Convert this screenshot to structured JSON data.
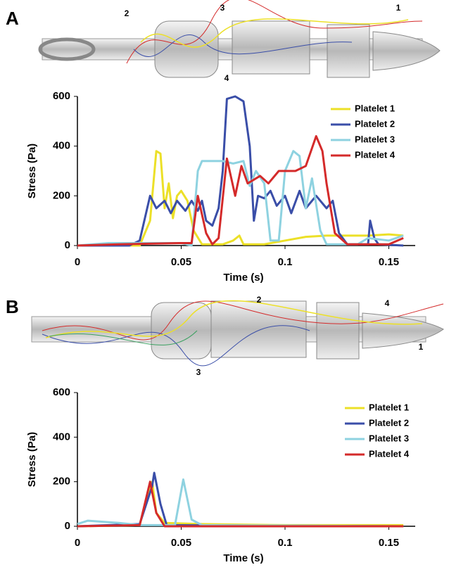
{
  "chart_data": [
    {
      "panel": "A",
      "type": "line",
      "image_labels": [
        "1",
        "2",
        "3",
        "4"
      ],
      "xlabel": "Time (s)",
      "ylabel": "Stress (Pa)",
      "xlim": [
        0,
        0.16
      ],
      "ylim": [
        0,
        600
      ],
      "xticks": [
        0,
        0.05,
        0.1,
        0.15
      ],
      "yticks": [
        0,
        200,
        400,
        600
      ],
      "legend": "upper right",
      "series": [
        {
          "name": "Platelet 1",
          "color": "#ece028",
          "x": [
            0,
            0.03,
            0.035,
            0.038,
            0.04,
            0.042,
            0.044,
            0.046,
            0.048,
            0.05,
            0.053,
            0.056,
            0.06,
            0.07,
            0.075,
            0.078,
            0.08,
            0.09,
            0.1,
            0.11,
            0.12,
            0.13,
            0.14,
            0.15,
            0.157
          ],
          "values": [
            0,
            0,
            100,
            380,
            370,
            150,
            250,
            110,
            200,
            220,
            180,
            60,
            5,
            5,
            20,
            40,
            5,
            5,
            20,
            35,
            40,
            40,
            40,
            45,
            40
          ]
        },
        {
          "name": "Platelet 2",
          "color": "#3a4ea8",
          "x": [
            0,
            0.025,
            0.03,
            0.035,
            0.038,
            0.042,
            0.045,
            0.048,
            0.052,
            0.055,
            0.058,
            0.06,
            0.062,
            0.065,
            0.068,
            0.07,
            0.072,
            0.076,
            0.08,
            0.083,
            0.085,
            0.087,
            0.09,
            0.093,
            0.096,
            0.1,
            0.103,
            0.107,
            0.11,
            0.115,
            0.12,
            0.123,
            0.126,
            0.13,
            0.14,
            0.141,
            0.143,
            0.145,
            0.157
          ],
          "values": [
            0,
            0,
            20,
            200,
            150,
            180,
            130,
            180,
            140,
            180,
            140,
            180,
            100,
            80,
            150,
            300,
            590,
            600,
            580,
            400,
            100,
            200,
            190,
            220,
            160,
            200,
            130,
            220,
            150,
            200,
            150,
            180,
            50,
            5,
            5,
            100,
            30,
            5,
            0
          ]
        },
        {
          "name": "Platelet 3",
          "color": "#8ed2e0",
          "x": [
            0,
            0.015,
            0.05,
            0.055,
            0.058,
            0.06,
            0.07,
            0.075,
            0.08,
            0.083,
            0.086,
            0.09,
            0.093,
            0.097,
            0.1,
            0.104,
            0.107,
            0.11,
            0.113,
            0.117,
            0.12,
            0.135,
            0.14,
            0.15,
            0.157
          ],
          "values": [
            0,
            10,
            10,
            0,
            300,
            340,
            340,
            330,
            340,
            240,
            300,
            250,
            20,
            20,
            300,
            380,
            360,
            150,
            270,
            60,
            5,
            5,
            30,
            20,
            40
          ]
        },
        {
          "name": "Platelet 4",
          "color": "#d42a2a",
          "x": [
            0,
            0.02,
            0.05,
            0.055,
            0.058,
            0.062,
            0.065,
            0.068,
            0.072,
            0.076,
            0.079,
            0.082,
            0.088,
            0.092,
            0.097,
            0.105,
            0.11,
            0.115,
            0.118,
            0.12,
            0.124,
            0.13,
            0.15,
            0.157
          ],
          "values": [
            0,
            5,
            10,
            10,
            200,
            50,
            5,
            30,
            350,
            200,
            320,
            250,
            280,
            250,
            300,
            300,
            320,
            440,
            380,
            250,
            50,
            5,
            5,
            30
          ]
        }
      ]
    },
    {
      "panel": "B",
      "type": "line",
      "image_labels": [
        "1",
        "2",
        "3",
        "4"
      ],
      "xlabel": "Time (s)",
      "ylabel": "Stress (Pa)",
      "xlim": [
        0,
        0.16
      ],
      "ylim": [
        0,
        600
      ],
      "xticks": [
        0,
        0.05,
        0.1,
        0.15
      ],
      "yticks": [
        0,
        200,
        400,
        600
      ],
      "legend": "right",
      "series": [
        {
          "name": "Platelet 1",
          "color": "#ece028",
          "x": [
            0,
            0.03,
            0.034,
            0.036,
            0.038,
            0.042,
            0.06,
            0.1,
            0.157
          ],
          "values": [
            0,
            5,
            150,
            200,
            60,
            15,
            10,
            5,
            5
          ]
        },
        {
          "name": "Platelet 2",
          "color": "#3a4ea8",
          "x": [
            0,
            0.03,
            0.036,
            0.037,
            0.04,
            0.043,
            0.157
          ],
          "values": [
            0,
            10,
            180,
            240,
            100,
            5,
            0
          ]
        },
        {
          "name": "Platelet 3",
          "color": "#8ed2e0",
          "x": [
            0,
            0.005,
            0.02,
            0.03,
            0.047,
            0.051,
            0.055,
            0.06,
            0.157
          ],
          "values": [
            10,
            25,
            15,
            5,
            5,
            210,
            30,
            5,
            0
          ]
        },
        {
          "name": "Platelet 4",
          "color": "#d42a2a",
          "x": [
            0,
            0.03,
            0.035,
            0.038,
            0.042,
            0.157
          ],
          "values": [
            0,
            5,
            200,
            60,
            0,
            0
          ]
        }
      ]
    }
  ]
}
